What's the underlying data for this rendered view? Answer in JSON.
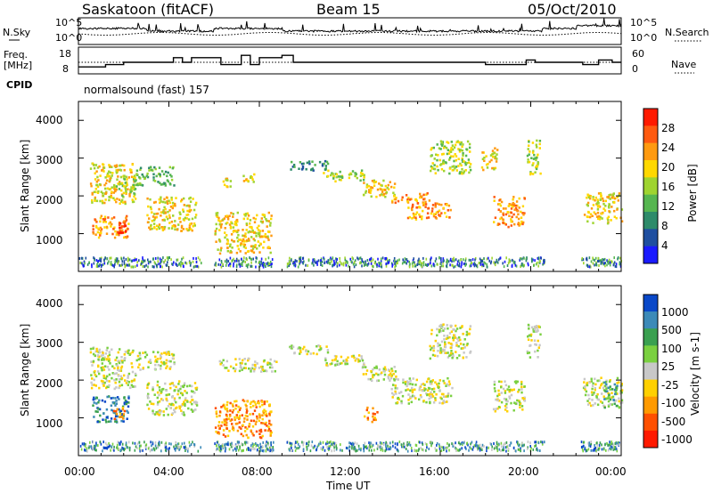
{
  "header": {
    "station": "Saskatoon (fitACF)",
    "beam": "Beam 15",
    "date": "05/Oct/2010"
  },
  "summary": {
    "nsky_label": "N.Sky",
    "nsearch_label": "N.Search",
    "freq_label_line1": "Freq.",
    "freq_label_line2": "[MHz]",
    "nave_label": "Nave",
    "cpid_label": "CPID",
    "noise_ticks_left": [
      "10^5",
      "10^0"
    ],
    "noise_ticks_right": [
      "10^5",
      "10^0"
    ],
    "freq_ticks": [
      "18",
      "8"
    ],
    "nave_ticks": [
      "60",
      "0"
    ],
    "cpid_text": "normalsound (fast) 157"
  },
  "chart_data": [
    {
      "type": "heatmap",
      "name": "power",
      "ylabel": "Slant Range [km]",
      "ylim": [
        0,
        4500
      ],
      "yticks": [
        1000,
        2000,
        3000,
        4000
      ],
      "colorbar": {
        "label": "Power [dB]",
        "ticks": [
          "4",
          "8",
          "12",
          "16",
          "20",
          "24",
          "28"
        ],
        "colors": [
          "#1a1aff",
          "#1f4fa0",
          "#2e8b6a",
          "#56b650",
          "#9fd430",
          "#ffd800",
          "#ff9a10",
          "#ff5a10",
          "#ff1a00"
        ]
      },
      "cells": [
        [
          0.5,
          2.5,
          2900,
          1800,
          5
        ],
        [
          0.6,
          2.2,
          1500,
          900,
          6
        ],
        [
          1.5,
          2.1,
          1300,
          1000,
          8
        ],
        [
          1.6,
          2.5,
          2500,
          2000,
          4
        ],
        [
          2.5,
          4.2,
          2800,
          2300,
          3
        ],
        [
          3.0,
          5.2,
          2000,
          1100,
          5
        ],
        [
          6.3,
          6.7,
          2500,
          2250,
          5
        ],
        [
          7.2,
          7.8,
          2600,
          2350,
          5
        ],
        [
          6.0,
          8.5,
          1600,
          500,
          5
        ],
        [
          9.3,
          11.0,
          2950,
          2700,
          2
        ],
        [
          10.8,
          12.6,
          2700,
          2400,
          4
        ],
        [
          12.5,
          14.0,
          2450,
          2000,
          5
        ],
        [
          13.8,
          15.5,
          2100,
          1800,
          6
        ],
        [
          14.5,
          16.5,
          1850,
          1400,
          6
        ],
        [
          15.5,
          17.3,
          3500,
          2600,
          4
        ],
        [
          17.8,
          18.5,
          3300,
          2700,
          5
        ],
        [
          18.3,
          19.7,
          2000,
          1200,
          6
        ],
        [
          19.8,
          20.4,
          3500,
          2600,
          4
        ],
        [
          22.3,
          24.0,
          2100,
          1300,
          5
        ]
      ]
    },
    {
      "type": "heatmap",
      "name": "velocity",
      "ylabel": "Slant Range [km]",
      "ylim": [
        0,
        4500
      ],
      "yticks": [
        1000,
        2000,
        3000,
        4000
      ],
      "colorbar": {
        "label": "Velocity [m s-1]",
        "ticks": [
          "1000",
          "500",
          "100",
          "25",
          "-25",
          "-100",
          "-500",
          "-1000"
        ],
        "colors": [
          "#0a48c8",
          "#3c8ab8",
          "#3aa050",
          "#7ad040",
          "#c8c8c8",
          "#ffd000",
          "#ff9a00",
          "#ff5000",
          "#ff1a00"
        ]
      },
      "cells": [
        [
          0.5,
          2.5,
          2900,
          1800,
          4
        ],
        [
          0.6,
          2.2,
          1600,
          900,
          1
        ],
        [
          1.5,
          2.1,
          1300,
          1000,
          6
        ],
        [
          2.5,
          4.2,
          2800,
          2300,
          4
        ],
        [
          3.0,
          5.2,
          2000,
          1100,
          4
        ],
        [
          6.0,
          8.5,
          1500,
          500,
          6
        ],
        [
          6.2,
          8.8,
          2600,
          2250,
          4
        ],
        [
          9.3,
          11.0,
          2950,
          2700,
          4
        ],
        [
          10.8,
          12.6,
          2700,
          2400,
          4
        ],
        [
          12.5,
          14.0,
          2450,
          2000,
          4
        ],
        [
          12.6,
          13.2,
          1300,
          900,
          6
        ],
        [
          13.8,
          16.5,
          2100,
          1400,
          4
        ],
        [
          15.5,
          17.3,
          3500,
          2600,
          4
        ],
        [
          18.3,
          19.7,
          2000,
          1200,
          4
        ],
        [
          19.8,
          20.4,
          3500,
          2600,
          4
        ],
        [
          22.3,
          24.0,
          2100,
          1300,
          4
        ],
        [
          23.2,
          23.8,
          2000,
          1300,
          2
        ]
      ]
    }
  ],
  "xaxis": {
    "label": "Time UT",
    "xlim": [
      0,
      24
    ],
    "ticks": [
      "00:00",
      "04:00",
      "08:00",
      "12:00",
      "16:00",
      "20:00",
      "00:00"
    ]
  }
}
